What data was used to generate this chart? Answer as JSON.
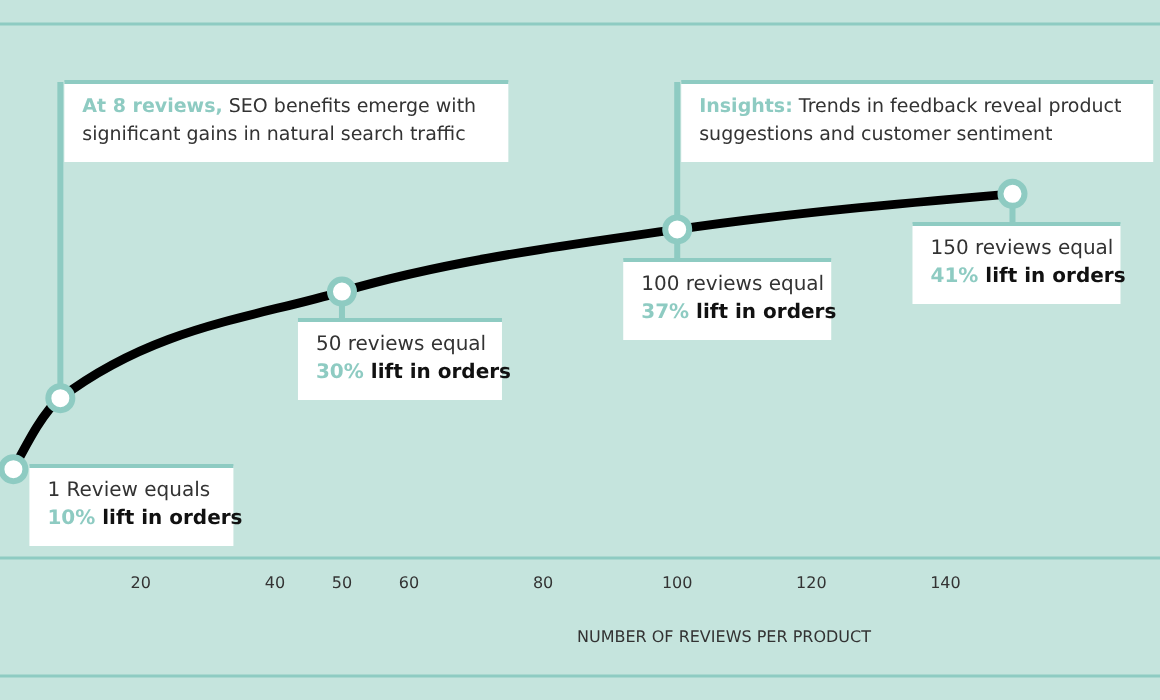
{
  "chart_data": {
    "type": "line",
    "xlabel": "NUMBER OF REVIEWS PER PRODUCT",
    "x": [
      1,
      8,
      50,
      100,
      150
    ],
    "series": [
      {
        "color": "#000000",
        "values": [
          10,
          18,
          30,
          37,
          41
        ],
        "value_labels": [
          "10% lift in orders",
          null,
          "30% lift in orders",
          "37% lift in orders",
          "41% lift in orders"
        ]
      }
    ],
    "xlim": [
      -1,
      172
    ],
    "xticks": [
      20,
      40,
      50,
      60,
      80,
      100,
      120,
      140
    ],
    "tick_labels": "x",
    "marker": "circle",
    "line_style": "solid",
    "annotations": [
      "At 8 reviews, SEO benefits emerge with\nsignificant gains in natural search traffic",
      "Insights: Trends in feedback reveal product\nsuggestions and customer sentiment",
      {
        "text": "1 Review equals",
        "x": 1,
        "y": 10
      },
      {
        "text": "50 reviews equal",
        "x": 50,
        "y": 30
      },
      {
        "text": "100 reviews equal",
        "x": 100,
        "y": 37
      },
      {
        "text": "150 reviews equal",
        "x": 150,
        "y": 41
      }
    ]
  }
}
